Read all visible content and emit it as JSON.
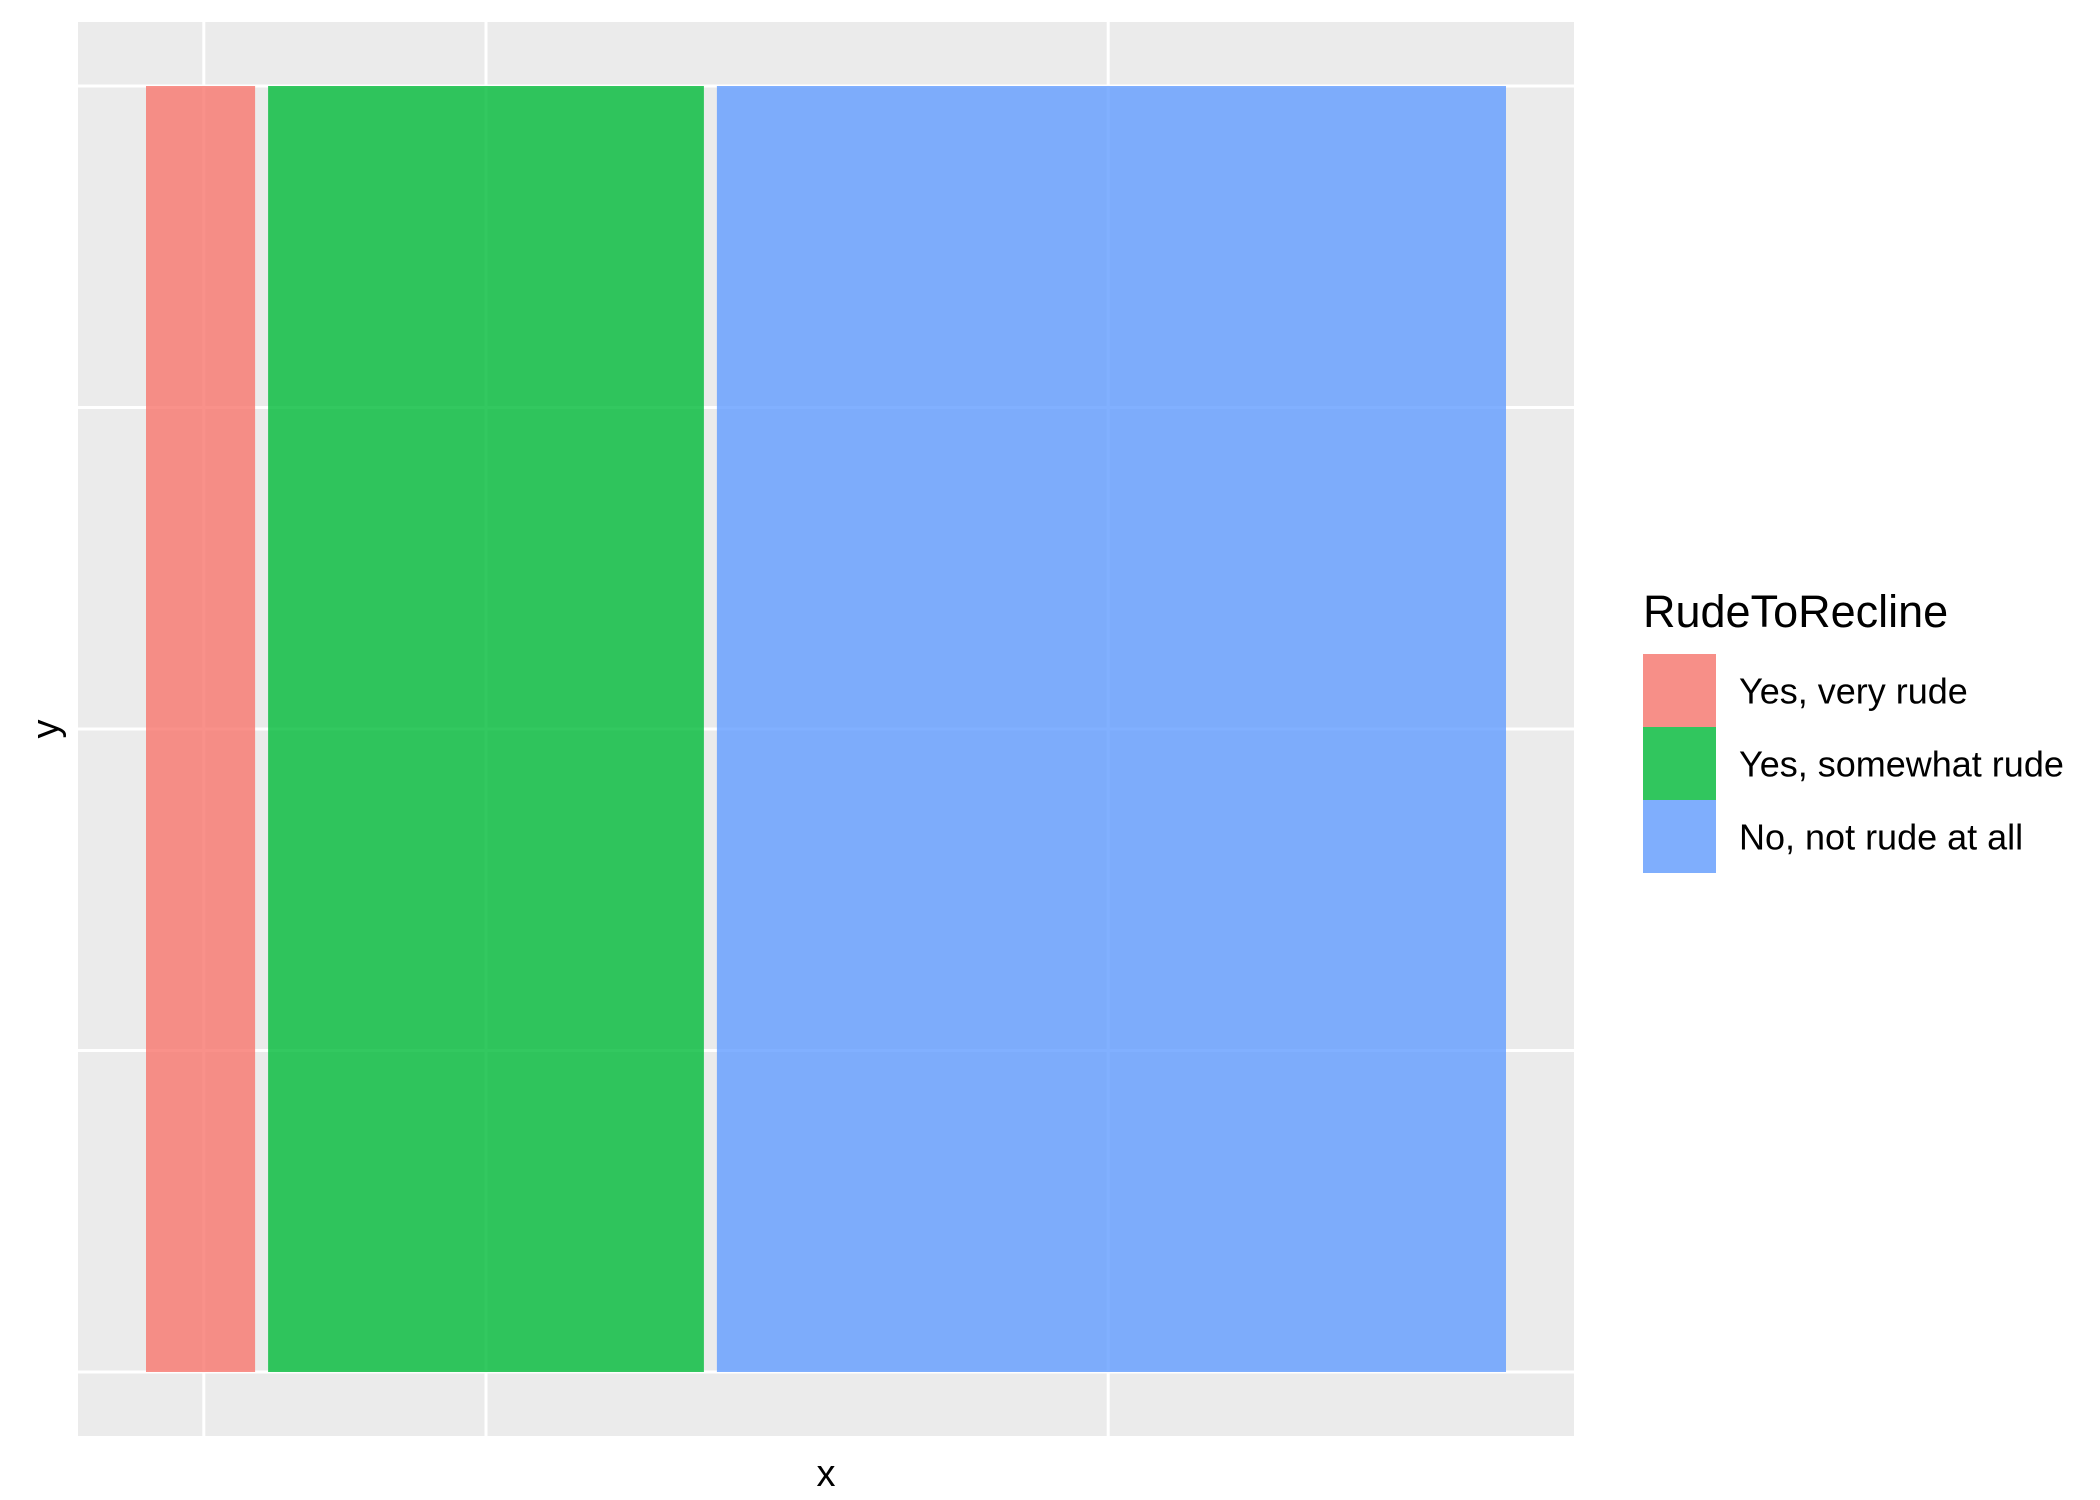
{
  "chart_data": {
    "type": "bar",
    "subtype": "mosaic",
    "xlabel": "x",
    "ylabel": "y",
    "legend": {
      "title": "RudeToRecline",
      "position": "right"
    },
    "categories": [
      "Yes, very rude",
      "Yes, somewhat rude",
      "No, not rude at all"
    ],
    "values": [
      0.085,
      0.33,
      0.585
    ],
    "colors": [
      "#F8766D",
      "#00BA38",
      "#619CFF"
    ],
    "fill_opacity": 0.8,
    "xlim": [
      0,
      1
    ],
    "ylim": [
      0,
      1
    ],
    "grid": true,
    "panel_background": "#EBEBEB"
  }
}
